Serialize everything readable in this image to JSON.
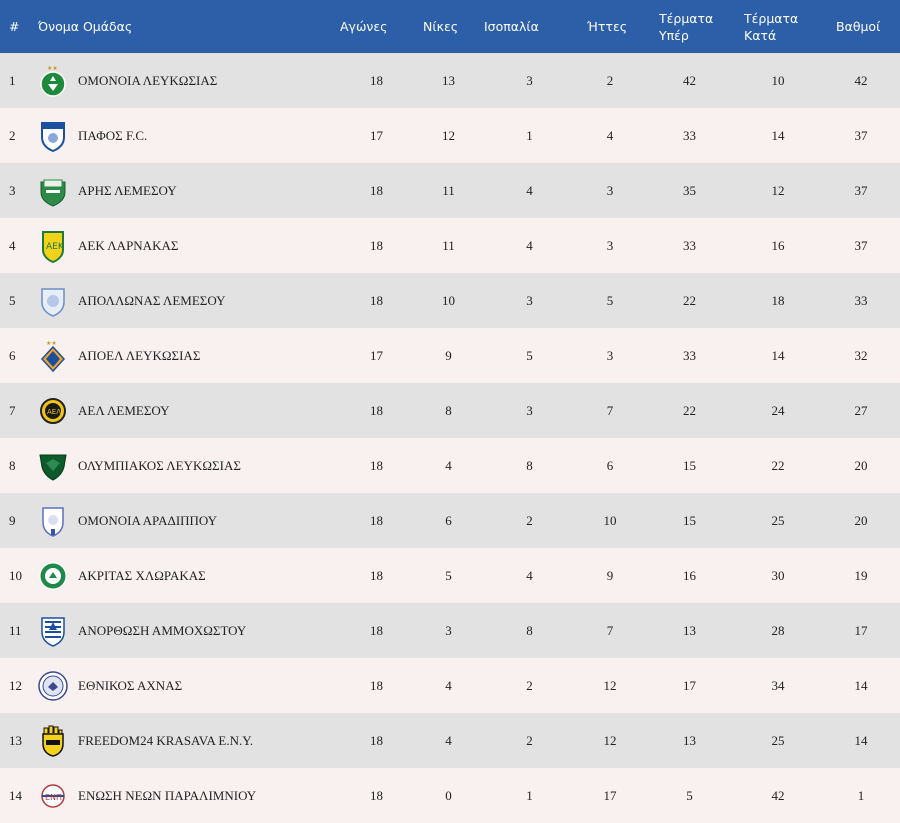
{
  "table": {
    "headers": {
      "rank": "#",
      "team": "Όνομα Ομάδας",
      "played": "Αγώνες",
      "wins": "Νίκες",
      "draws": "Ισοπαλία",
      "losses": "Ήττες",
      "goals_for_1": "Τέρματα",
      "goals_for_2": "Υπέρ",
      "goals_against_1": "Τέρματα",
      "goals_against_2": "Κατά",
      "points": "Βαθμοί"
    },
    "rows": [
      {
        "rank": "1",
        "team": "ΟΜΟΝΟΙΑ ΛΕΥΚΩΣΙΑΣ",
        "played": "18",
        "wins": "13",
        "draws": "3",
        "losses": "2",
        "gf": "42",
        "ga": "10",
        "pts": "42",
        "logo": "omonoia-logo"
      },
      {
        "rank": "2",
        "team": "ΠΑΦΟΣ F.C.",
        "played": "17",
        "wins": "12",
        "draws": "1",
        "losses": "4",
        "gf": "33",
        "ga": "14",
        "pts": "37",
        "logo": "pafos-logo"
      },
      {
        "rank": "3",
        "team": "ΑΡΗΣ ΛΕΜΕΣΟΥ",
        "played": "18",
        "wins": "11",
        "draws": "4",
        "losses": "3",
        "gf": "35",
        "ga": "12",
        "pts": "37",
        "logo": "aris-logo"
      },
      {
        "rank": "4",
        "team": "ΑΕΚ ΛΑΡΝΑΚΑΣ",
        "played": "18",
        "wins": "11",
        "draws": "4",
        "losses": "3",
        "gf": "33",
        "ga": "16",
        "pts": "37",
        "logo": "aek-logo"
      },
      {
        "rank": "5",
        "team": "ΑΠΟΛΛΩΝΑΣ ΛΕΜΕΣΟΥ",
        "played": "18",
        "wins": "10",
        "draws": "3",
        "losses": "5",
        "gf": "22",
        "ga": "18",
        "pts": "33",
        "logo": "apollon-logo"
      },
      {
        "rank": "6",
        "team": "ΑΠΟΕΛ ΛΕΥΚΩΣΙΑΣ",
        "played": "17",
        "wins": "9",
        "draws": "5",
        "losses": "3",
        "gf": "33",
        "ga": "14",
        "pts": "32",
        "logo": "apoel-logo"
      },
      {
        "rank": "7",
        "team": "ΑΕΛ ΛΕΜΕΣΟΥ",
        "played": "18",
        "wins": "8",
        "draws": "3",
        "losses": "7",
        "gf": "22",
        "ga": "24",
        "pts": "27",
        "logo": "ael-logo"
      },
      {
        "rank": "8",
        "team": "ΟΛΥΜΠΙΑΚΟΣ ΛΕΥΚΩΣΙΑΣ",
        "played": "18",
        "wins": "4",
        "draws": "8",
        "losses": "6",
        "gf": "15",
        "ga": "22",
        "pts": "20",
        "logo": "olympiakos-logo"
      },
      {
        "rank": "9",
        "team": "ΟΜΟΝΟΙΑ ΑΡΑΔΙΠΠΟΥ",
        "played": "18",
        "wins": "6",
        "draws": "2",
        "losses": "10",
        "gf": "15",
        "ga": "25",
        "pts": "20",
        "logo": "omonoia-aradippou-logo"
      },
      {
        "rank": "10",
        "team": "ΑΚΡΙΤΑΣ ΧΛΩΡΑΚΑΣ",
        "played": "18",
        "wins": "5",
        "draws": "4",
        "losses": "9",
        "gf": "16",
        "ga": "30",
        "pts": "19",
        "logo": "akritas-logo"
      },
      {
        "rank": "11",
        "team": "ΑΝΟΡΘΩΣΗ ΑΜΜΟΧΩΣΤΟΥ",
        "played": "18",
        "wins": "3",
        "draws": "8",
        "losses": "7",
        "gf": "13",
        "ga": "28",
        "pts": "17",
        "logo": "anorthosis-logo"
      },
      {
        "rank": "12",
        "team": "ΕΘΝΙΚΟΣ ΑΧΝΑΣ",
        "played": "18",
        "wins": "4",
        "draws": "2",
        "losses": "12",
        "gf": "17",
        "ga": "34",
        "pts": "14",
        "logo": "ethnikos-logo"
      },
      {
        "rank": "13",
        "team": "FREEDOM24 KRASAVA E.N.Y.",
        "played": "18",
        "wins": "4",
        "draws": "2",
        "losses": "12",
        "gf": "13",
        "ga": "25",
        "pts": "14",
        "logo": "krasava-logo"
      },
      {
        "rank": "14",
        "team": "ΕΝΩΣΗ ΝΕΩΝ ΠΑΡΑΛΙΜΝΙΟΥ",
        "played": "18",
        "wins": "0",
        "draws": "1",
        "losses": "17",
        "gf": "5",
        "ga": "42",
        "pts": "1",
        "logo": "enp-logo"
      }
    ]
  },
  "colors": {
    "header_bg": "#2c5fa8",
    "row_odd": "#e2e2e2",
    "row_even": "#f9f0f0"
  }
}
